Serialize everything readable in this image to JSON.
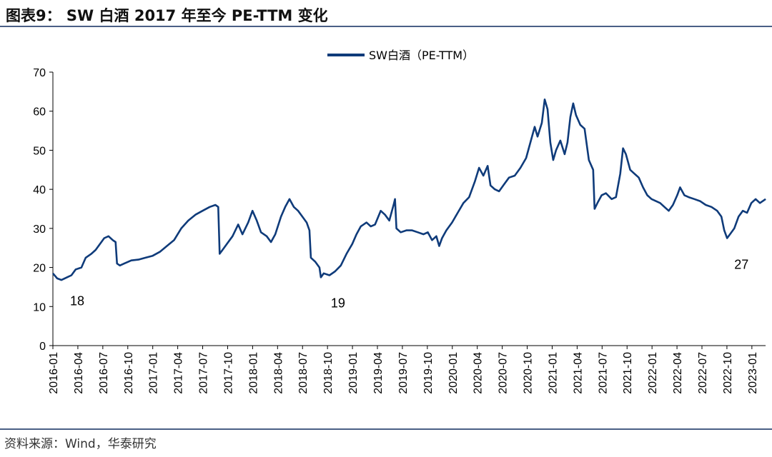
{
  "header": {
    "title": "图表9： SW 白酒 2017 年至今 PE-TTM 变化"
  },
  "footer": {
    "source": "资料来源：Wind，华泰研究"
  },
  "colors": {
    "series": "#0f3b7a",
    "rule": "#4a5f86"
  },
  "chart_data": {
    "type": "line",
    "title": "",
    "xlabel": "",
    "ylabel": "",
    "ylim": [
      0,
      70
    ],
    "yticks": [
      0,
      10,
      20,
      30,
      40,
      50,
      60,
      70
    ],
    "legend": "top-center",
    "x_ticks": [
      "2016-01",
      "2016-04",
      "2016-07",
      "2016-10",
      "2017-01",
      "2017-04",
      "2017-07",
      "2017-10",
      "2018-01",
      "2018-04",
      "2018-07",
      "2018-10",
      "2019-01",
      "2019-04",
      "2019-07",
      "2019-10",
      "2020-01",
      "2020-04",
      "2020-07",
      "2020-10",
      "2021-01",
      "2021-04",
      "2021-07",
      "2021-10",
      "2022-01",
      "2022-04",
      "2022-07",
      "2022-10",
      "2023-01"
    ],
    "series": [
      {
        "name": "SW白酒（PE-TTM）",
        "points": [
          [
            0.0,
            18.5
          ],
          [
            0.3,
            17.2
          ],
          [
            0.6,
            16.8
          ],
          [
            1.0,
            17.5
          ],
          [
            1.3,
            18.0
          ],
          [
            1.6,
            19.5
          ],
          [
            2.0,
            20.0
          ],
          [
            2.3,
            22.5
          ],
          [
            2.7,
            23.5
          ],
          [
            3.0,
            24.5
          ],
          [
            3.3,
            26.0
          ],
          [
            3.6,
            27.5
          ],
          [
            3.9,
            28.0
          ],
          [
            4.2,
            27.0
          ],
          [
            4.4,
            26.5
          ],
          [
            4.5,
            21.0
          ],
          [
            4.7,
            20.5
          ],
          [
            5.0,
            21.0
          ],
          [
            5.5,
            21.8
          ],
          [
            6.0,
            22.0
          ],
          [
            6.5,
            22.5
          ],
          [
            7.0,
            23.0
          ],
          [
            7.5,
            24.0
          ],
          [
            8.0,
            25.5
          ],
          [
            8.5,
            27.0
          ],
          [
            9.0,
            30.0
          ],
          [
            9.5,
            32.0
          ],
          [
            10.0,
            33.5
          ],
          [
            10.5,
            34.5
          ],
          [
            11.0,
            35.5
          ],
          [
            11.4,
            36.0
          ],
          [
            11.6,
            35.5
          ],
          [
            11.7,
            23.5
          ],
          [
            11.9,
            24.5
          ],
          [
            12.2,
            26.0
          ],
          [
            12.6,
            28.0
          ],
          [
            13.0,
            31.0
          ],
          [
            13.3,
            28.5
          ],
          [
            13.7,
            31.5
          ],
          [
            14.0,
            34.5
          ],
          [
            14.3,
            32.0
          ],
          [
            14.6,
            29.0
          ],
          [
            15.0,
            28.0
          ],
          [
            15.3,
            26.5
          ],
          [
            15.6,
            28.5
          ],
          [
            16.0,
            33.0
          ],
          [
            16.3,
            35.5
          ],
          [
            16.6,
            37.5
          ],
          [
            16.9,
            35.5
          ],
          [
            17.2,
            34.5
          ],
          [
            17.5,
            33.0
          ],
          [
            17.8,
            31.5
          ],
          [
            18.0,
            29.5
          ],
          [
            18.1,
            22.5
          ],
          [
            18.4,
            21.5
          ],
          [
            18.7,
            20.0
          ],
          [
            18.8,
            17.5
          ],
          [
            19.0,
            18.5
          ],
          [
            19.4,
            18.0
          ],
          [
            19.8,
            19.0
          ],
          [
            20.2,
            20.5
          ],
          [
            20.6,
            23.5
          ],
          [
            21.0,
            26.0
          ],
          [
            21.3,
            28.5
          ],
          [
            21.6,
            30.5
          ],
          [
            22.0,
            31.5
          ],
          [
            22.3,
            30.5
          ],
          [
            22.6,
            31.0
          ],
          [
            23.0,
            34.5
          ],
          [
            23.3,
            33.5
          ],
          [
            23.6,
            32.0
          ],
          [
            23.9,
            36.0
          ],
          [
            24.0,
            37.5
          ],
          [
            24.1,
            30.0
          ],
          [
            24.4,
            29.0
          ],
          [
            24.8,
            29.5
          ],
          [
            25.2,
            29.5
          ],
          [
            25.6,
            29.0
          ],
          [
            26.0,
            28.5
          ],
          [
            26.3,
            29.0
          ],
          [
            26.6,
            27.0
          ],
          [
            26.9,
            28.0
          ],
          [
            27.1,
            25.5
          ],
          [
            27.3,
            27.5
          ],
          [
            27.6,
            29.5
          ],
          [
            28.0,
            31.5
          ],
          [
            28.4,
            34.0
          ],
          [
            28.8,
            36.5
          ],
          [
            29.2,
            38.0
          ],
          [
            29.6,
            42.0
          ],
          [
            29.9,
            45.5
          ],
          [
            30.2,
            43.5
          ],
          [
            30.5,
            46.0
          ],
          [
            30.7,
            41.0
          ],
          [
            31.0,
            40.0
          ],
          [
            31.3,
            39.5
          ],
          [
            31.7,
            41.5
          ],
          [
            32.0,
            43.0
          ],
          [
            32.4,
            43.5
          ],
          [
            32.8,
            45.5
          ],
          [
            33.2,
            48.0
          ],
          [
            33.5,
            52.0
          ],
          [
            33.8,
            56.0
          ],
          [
            34.0,
            53.5
          ],
          [
            34.3,
            57.0
          ],
          [
            34.5,
            63.0
          ],
          [
            34.7,
            60.5
          ],
          [
            34.9,
            52.0
          ],
          [
            35.1,
            47.5
          ],
          [
            35.3,
            50.0
          ],
          [
            35.6,
            52.5
          ],
          [
            35.9,
            49.0
          ],
          [
            36.1,
            52.0
          ],
          [
            36.3,
            58.5
          ],
          [
            36.5,
            62.0
          ],
          [
            36.7,
            59.0
          ],
          [
            37.0,
            56.5
          ],
          [
            37.3,
            55.5
          ],
          [
            37.6,
            47.5
          ],
          [
            37.9,
            45.0
          ],
          [
            38.0,
            35.0
          ],
          [
            38.2,
            36.5
          ],
          [
            38.5,
            38.5
          ],
          [
            38.8,
            39.0
          ],
          [
            39.2,
            37.5
          ],
          [
            39.5,
            38.0
          ],
          [
            39.8,
            44.0
          ],
          [
            40.0,
            50.5
          ],
          [
            40.2,
            49.0
          ],
          [
            40.5,
            45.0
          ],
          [
            40.8,
            44.0
          ],
          [
            41.1,
            43.0
          ],
          [
            41.4,
            40.5
          ],
          [
            41.7,
            38.5
          ],
          [
            42.0,
            37.5
          ],
          [
            42.3,
            37.0
          ],
          [
            42.6,
            36.5
          ],
          [
            42.9,
            35.5
          ],
          [
            43.2,
            34.5
          ],
          [
            43.5,
            36.0
          ],
          [
            43.8,
            38.5
          ],
          [
            44.0,
            40.5
          ],
          [
            44.3,
            38.5
          ],
          [
            44.6,
            38.0
          ],
          [
            45.0,
            37.5
          ],
          [
            45.4,
            37.0
          ],
          [
            45.8,
            36.0
          ],
          [
            46.2,
            35.5
          ],
          [
            46.6,
            34.5
          ],
          [
            46.9,
            33.0
          ],
          [
            47.1,
            29.5
          ],
          [
            47.3,
            27.5
          ],
          [
            47.5,
            28.5
          ],
          [
            47.8,
            30.0
          ],
          [
            48.1,
            33.0
          ],
          [
            48.4,
            34.5
          ],
          [
            48.7,
            34.0
          ],
          [
            49.0,
            36.5
          ],
          [
            49.3,
            37.5
          ],
          [
            49.6,
            36.5
          ],
          [
            49.8,
            37.0
          ],
          [
            50.0,
            37.5
          ]
        ],
        "annotations": [
          {
            "x": 0.2,
            "y": 16.5,
            "label": "18"
          },
          {
            "x": 19.5,
            "y": 17.5,
            "label": "19"
          },
          {
            "x": 47.3,
            "y": 27.0,
            "label": "27"
          }
        ]
      }
    ]
  }
}
